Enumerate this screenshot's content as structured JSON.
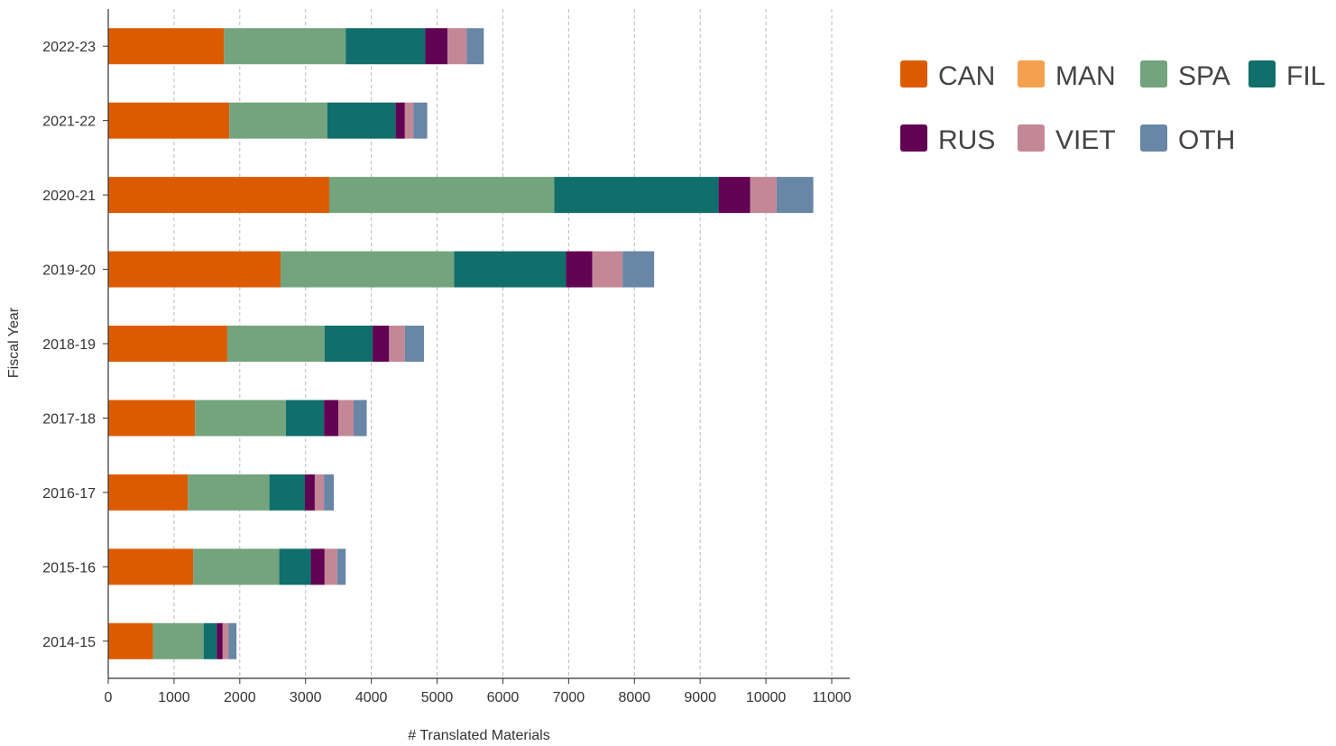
{
  "chart_data": {
    "type": "bar",
    "orientation": "horizontal",
    "stacked": true,
    "title": "",
    "xlabel": "# Translated Materials",
    "ylabel": "Fiscal Year",
    "xlim": [
      0,
      11000
    ],
    "x_ticks": [
      0,
      1000,
      2000,
      3000,
      4000,
      5000,
      6000,
      7000,
      8000,
      9000,
      10000,
      11000
    ],
    "grid": "vertical dashed",
    "legend_position": "top-right",
    "categories": [
      "2022-23",
      "2021-22",
      "2020-21",
      "2019-20",
      "2018-19",
      "2017-18",
      "2016-17",
      "2015-16",
      "2014-15"
    ],
    "series": [
      {
        "name": "CAN",
        "color": "#DD5B00",
        "values": [
          1760,
          1840,
          3360,
          2620,
          1810,
          1320,
          1210,
          1290,
          680
        ]
      },
      {
        "name": "MAN",
        "color": "#F5A04E",
        "values": [
          0,
          0,
          0,
          0,
          0,
          0,
          0,
          0,
          0
        ]
      },
      {
        "name": "SPA",
        "color": "#73A47D",
        "values": [
          1850,
          1490,
          3420,
          2640,
          1480,
          1380,
          1240,
          1310,
          770
        ]
      },
      {
        "name": "FIL",
        "color": "#106E6B",
        "values": [
          1210,
          1040,
          2500,
          1700,
          730,
          580,
          540,
          480,
          200
        ]
      },
      {
        "name": "RUS",
        "color": "#620252",
        "values": [
          340,
          140,
          480,
          400,
          250,
          220,
          150,
          210,
          90
        ]
      },
      {
        "name": "VIET",
        "color": "#C48796",
        "values": [
          290,
          130,
          400,
          460,
          240,
          230,
          140,
          190,
          90
        ]
      },
      {
        "name": "OTH",
        "color": "#6886A5",
        "values": [
          260,
          210,
          560,
          480,
          290,
          200,
          150,
          130,
          120
        ]
      }
    ]
  }
}
